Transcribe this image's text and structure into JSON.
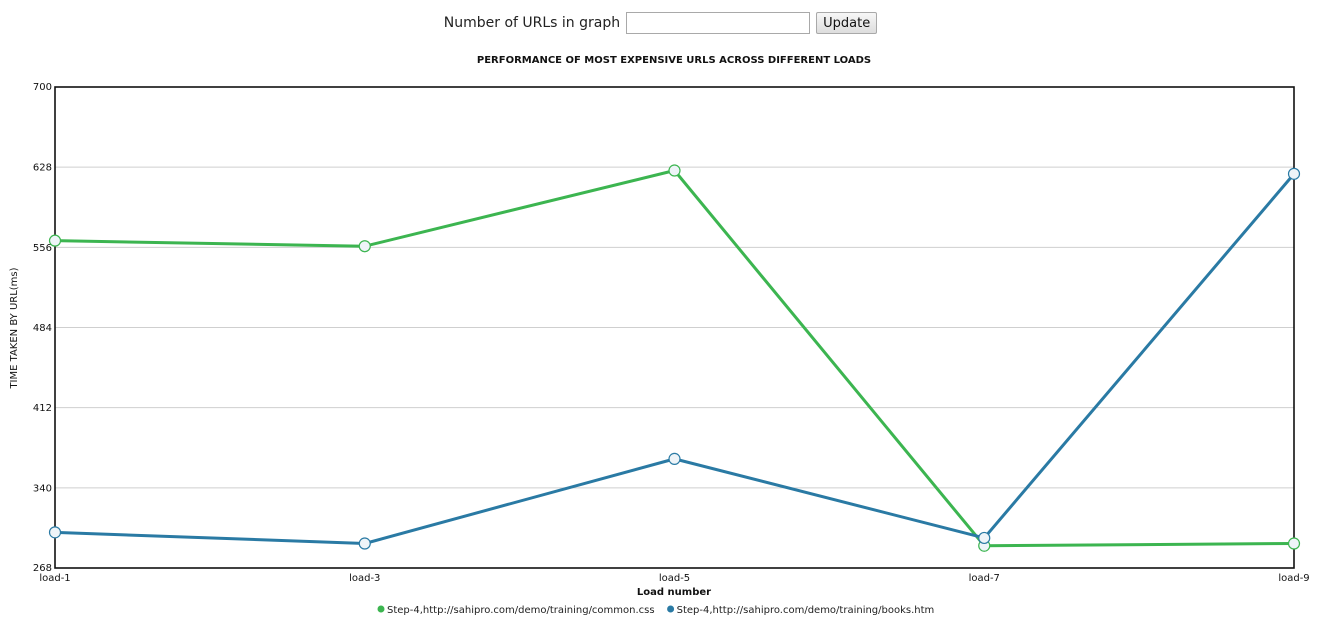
{
  "controls": {
    "label": "Number of URLs in graph",
    "input_value": "",
    "input_placeholder": "",
    "update_label": "Update"
  },
  "chart_data": {
    "type": "line",
    "title": "PERFORMANCE OF MOST EXPENSIVE URLS ACROSS DIFFERENT LOADS",
    "xlabel": "Load number",
    "ylabel": "TIME TAKEN BY URL(ms)",
    "categories": [
      "load-1",
      "load-3",
      "load-5",
      "load-7",
      "load-9"
    ],
    "ylim": [
      268,
      700
    ],
    "yticks": [
      "268",
      "340",
      "412",
      "484",
      "556",
      "628",
      "700"
    ],
    "grid": "horizontal",
    "legend_position": "bottom-center",
    "series": [
      {
        "name": "Step-4,http://sahipro.com/demo/training/common.css",
        "color": "#3cb550",
        "values": [
          562,
          557,
          625,
          288,
          290
        ]
      },
      {
        "name": "Step-4,http://sahipro.com/demo/training/books.htm",
        "color": "#2a7aa4",
        "values": [
          300,
          290,
          366,
          295,
          622
        ]
      }
    ]
  }
}
